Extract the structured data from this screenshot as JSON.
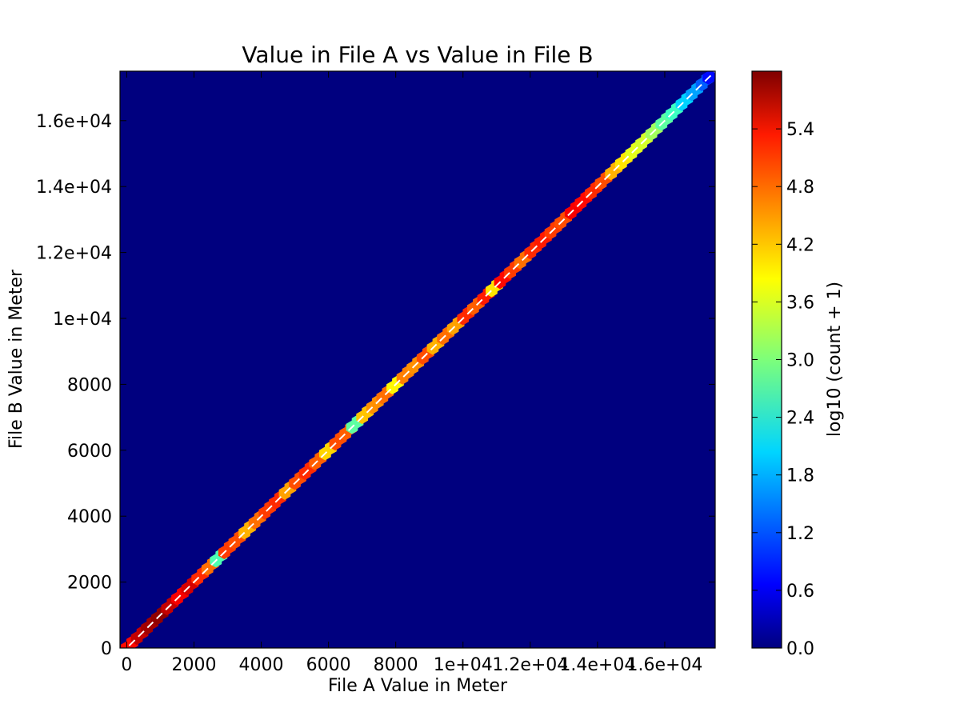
{
  "chart_data": {
    "type": "heatmap",
    "title": "Value in File A vs Value in File B",
    "xlabel": "File A Value in Meter",
    "ylabel": "File B Value in Meter",
    "xlim": [
      -200,
      17500
    ],
    "ylim": [
      0,
      17500
    ],
    "x_ticks": [
      {
        "value": 0,
        "label": "0"
      },
      {
        "value": 2000,
        "label": "2000"
      },
      {
        "value": 4000,
        "label": "4000"
      },
      {
        "value": 6000,
        "label": "6000"
      },
      {
        "value": 8000,
        "label": "8000"
      },
      {
        "value": 10000,
        "label": "1e+04"
      },
      {
        "value": 12000,
        "label": "1.2e+04"
      },
      {
        "value": 14000,
        "label": "1.4e+04"
      },
      {
        "value": 16000,
        "label": "1.6e+04"
      }
    ],
    "y_ticks": [
      {
        "value": 0,
        "label": "0"
      },
      {
        "value": 2000,
        "label": "2000"
      },
      {
        "value": 4000,
        "label": "4000"
      },
      {
        "value": 6000,
        "label": "6000"
      },
      {
        "value": 8000,
        "label": "8000"
      },
      {
        "value": 10000,
        "label": "1e+04"
      },
      {
        "value": 12000,
        "label": "1.2e+04"
      },
      {
        "value": 14000,
        "label": "1.4e+04"
      },
      {
        "value": 16000,
        "label": "1.6e+04"
      }
    ],
    "colorbar": {
      "label": "log10 (count + 1)",
      "range": [
        0,
        6.0
      ],
      "ticks": [
        {
          "value": 0.0,
          "label": "0.0"
        },
        {
          "value": 0.6,
          "label": "0.6"
        },
        {
          "value": 1.2,
          "label": "1.2"
        },
        {
          "value": 1.8,
          "label": "1.8"
        },
        {
          "value": 2.4,
          "label": "2.4"
        },
        {
          "value": 3.0,
          "label": "3.0"
        },
        {
          "value": 3.6,
          "label": "3.6"
        },
        {
          "value": 4.2,
          "label": "4.2"
        },
        {
          "value": 4.8,
          "label": "4.8"
        },
        {
          "value": 5.4,
          "label": "5.4"
        }
      ],
      "colormap": "jet"
    },
    "background_color": "#00007f",
    "reference_line": {
      "from": [
        -200,
        -200
      ],
      "to": [
        17500,
        17500
      ],
      "color": "#ffffff",
      "style": "dashed"
    },
    "bins": [
      {
        "v": 0,
        "c": 5.2
      },
      {
        "v": 300,
        "c": 5.6
      },
      {
        "v": 600,
        "c": 5.8
      },
      {
        "v": 900,
        "c": 5.9
      },
      {
        "v": 1200,
        "c": 5.6
      },
      {
        "v": 1500,
        "c": 5.3
      },
      {
        "v": 1800,
        "c": 5.5
      },
      {
        "v": 2100,
        "c": 5.0
      },
      {
        "v": 2400,
        "c": 4.6
      },
      {
        "v": 2650,
        "c": 2.7
      },
      {
        "v": 2900,
        "c": 4.9
      },
      {
        "v": 3200,
        "c": 4.8
      },
      {
        "v": 3500,
        "c": 4.2
      },
      {
        "v": 3800,
        "c": 4.6
      },
      {
        "v": 4100,
        "c": 4.9
      },
      {
        "v": 4400,
        "c": 5.0
      },
      {
        "v": 4700,
        "c": 4.3
      },
      {
        "v": 5000,
        "c": 4.8
      },
      {
        "v": 5300,
        "c": 5.0
      },
      {
        "v": 5600,
        "c": 4.7
      },
      {
        "v": 5900,
        "c": 4.0
      },
      {
        "v": 6200,
        "c": 4.8
      },
      {
        "v": 6500,
        "c": 4.7
      },
      {
        "v": 6700,
        "c": 2.8
      },
      {
        "v": 7000,
        "c": 4.1
      },
      {
        "v": 7300,
        "c": 4.4
      },
      {
        "v": 7600,
        "c": 4.6
      },
      {
        "v": 7900,
        "c": 3.8
      },
      {
        "v": 8200,
        "c": 4.5
      },
      {
        "v": 8500,
        "c": 4.4
      },
      {
        "v": 8800,
        "c": 4.8
      },
      {
        "v": 9100,
        "c": 4.2
      },
      {
        "v": 9400,
        "c": 4.6
      },
      {
        "v": 9700,
        "c": 4.3
      },
      {
        "v": 10000,
        "c": 5.0
      },
      {
        "v": 10300,
        "c": 4.7
      },
      {
        "v": 10600,
        "c": 5.1
      },
      {
        "v": 10850,
        "c": 3.9
      },
      {
        "v": 11100,
        "c": 5.2
      },
      {
        "v": 11400,
        "c": 4.9
      },
      {
        "v": 11700,
        "c": 4.6
      },
      {
        "v": 12000,
        "c": 5.0
      },
      {
        "v": 12300,
        "c": 5.1
      },
      {
        "v": 12600,
        "c": 4.9
      },
      {
        "v": 12900,
        "c": 4.8
      },
      {
        "v": 13200,
        "c": 5.3
      },
      {
        "v": 13500,
        "c": 5.2
      },
      {
        "v": 13800,
        "c": 5.0
      },
      {
        "v": 14100,
        "c": 4.8
      },
      {
        "v": 14400,
        "c": 4.2
      },
      {
        "v": 14700,
        "c": 3.9
      },
      {
        "v": 15000,
        "c": 3.6
      },
      {
        "v": 15300,
        "c": 3.5
      },
      {
        "v": 15600,
        "c": 3.2
      },
      {
        "v": 15900,
        "c": 2.8
      },
      {
        "v": 16200,
        "c": 2.6
      },
      {
        "v": 16500,
        "c": 2.0
      },
      {
        "v": 16800,
        "c": 1.7
      },
      {
        "v": 17100,
        "c": 1.3
      },
      {
        "v": 17300,
        "c": 0.8
      }
    ]
  }
}
